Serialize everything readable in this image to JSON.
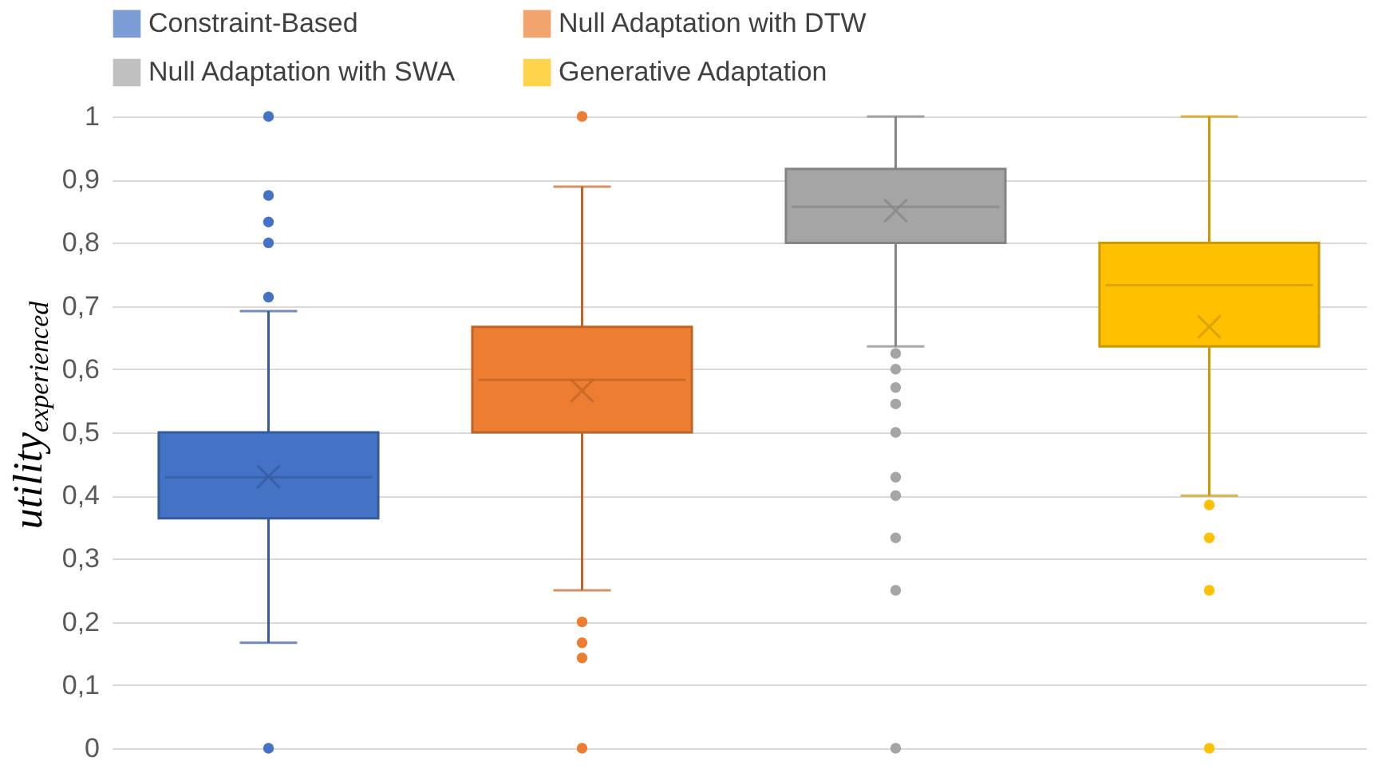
{
  "chart_data": {
    "type": "box",
    "ylabel": "utility$_{experienced}$",
    "categories": [
      null
    ],
    "ylim": [
      0,
      1
    ],
    "yticks": [
      0,
      {
        "value": 0.1,
        "label": "0,1"
      },
      {
        "value": 0.2,
        "label": "0,2"
      },
      {
        "value": 0.3,
        "label": "0,3"
      },
      {
        "value": 0.4,
        "label": "0,4"
      },
      {
        "value": 0.5,
        "label": "0,5"
      },
      {
        "value": 0.6,
        "label": "0,6"
      },
      {
        "value": 0.7,
        "label": "0,7"
      },
      {
        "value": 0.8,
        "label": "0,8"
      },
      {
        "value": 0.9,
        "label": "0,9"
      },
      1
    ],
    "grid": "y",
    "legend": "top",
    "series": [
      {
        "name": "Constraint-Based",
        "color": "#4472c4",
        "boxes": [
          {
            "low": 0.167,
            "q1": 0.364,
            "median": 0.429,
            "q3": 0.5,
            "high": 0.692,
            "mean": 0.43,
            "outliers": [
              1.0,
              0.875,
              0.833,
              0.8,
              0.714,
              0.0
            ]
          }
        ]
      },
      {
        "name": "Null Adaptation with DTW",
        "color": "#ed7d31",
        "boxes": [
          {
            "low": 0.25,
            "q1": 0.5,
            "median": 0.583,
            "q3": 0.667,
            "high": 0.889,
            "mean": 0.566,
            "outliers": [
              1.0,
              0.2,
              0.167,
              0.143,
              0.0
            ]
          }
        ]
      },
      {
        "name": "Null Adaptation with SWA",
        "color": "#a5a5a5",
        "boxes": [
          {
            "low": 0.636,
            "q1": 0.8,
            "median": 0.857,
            "q3": 0.917,
            "high": 1.0,
            "mean": 0.851,
            "outliers": [
              0.625,
              0.6,
              0.571,
              0.545,
              0.5,
              0.429,
              0.4,
              0.333,
              0.25,
              0.0
            ]
          }
        ]
      },
      {
        "name": "Generative Adaptation",
        "color": "#ffc000",
        "boxes": [
          {
            "low": 0.4,
            "q1": 0.636,
            "median": 0.733,
            "q3": 0.8,
            "high": 1.0,
            "mean": 0.667,
            "outliers": [
              0.385,
              0.333,
              0.25,
              0.0
            ]
          }
        ]
      }
    ]
  }
}
